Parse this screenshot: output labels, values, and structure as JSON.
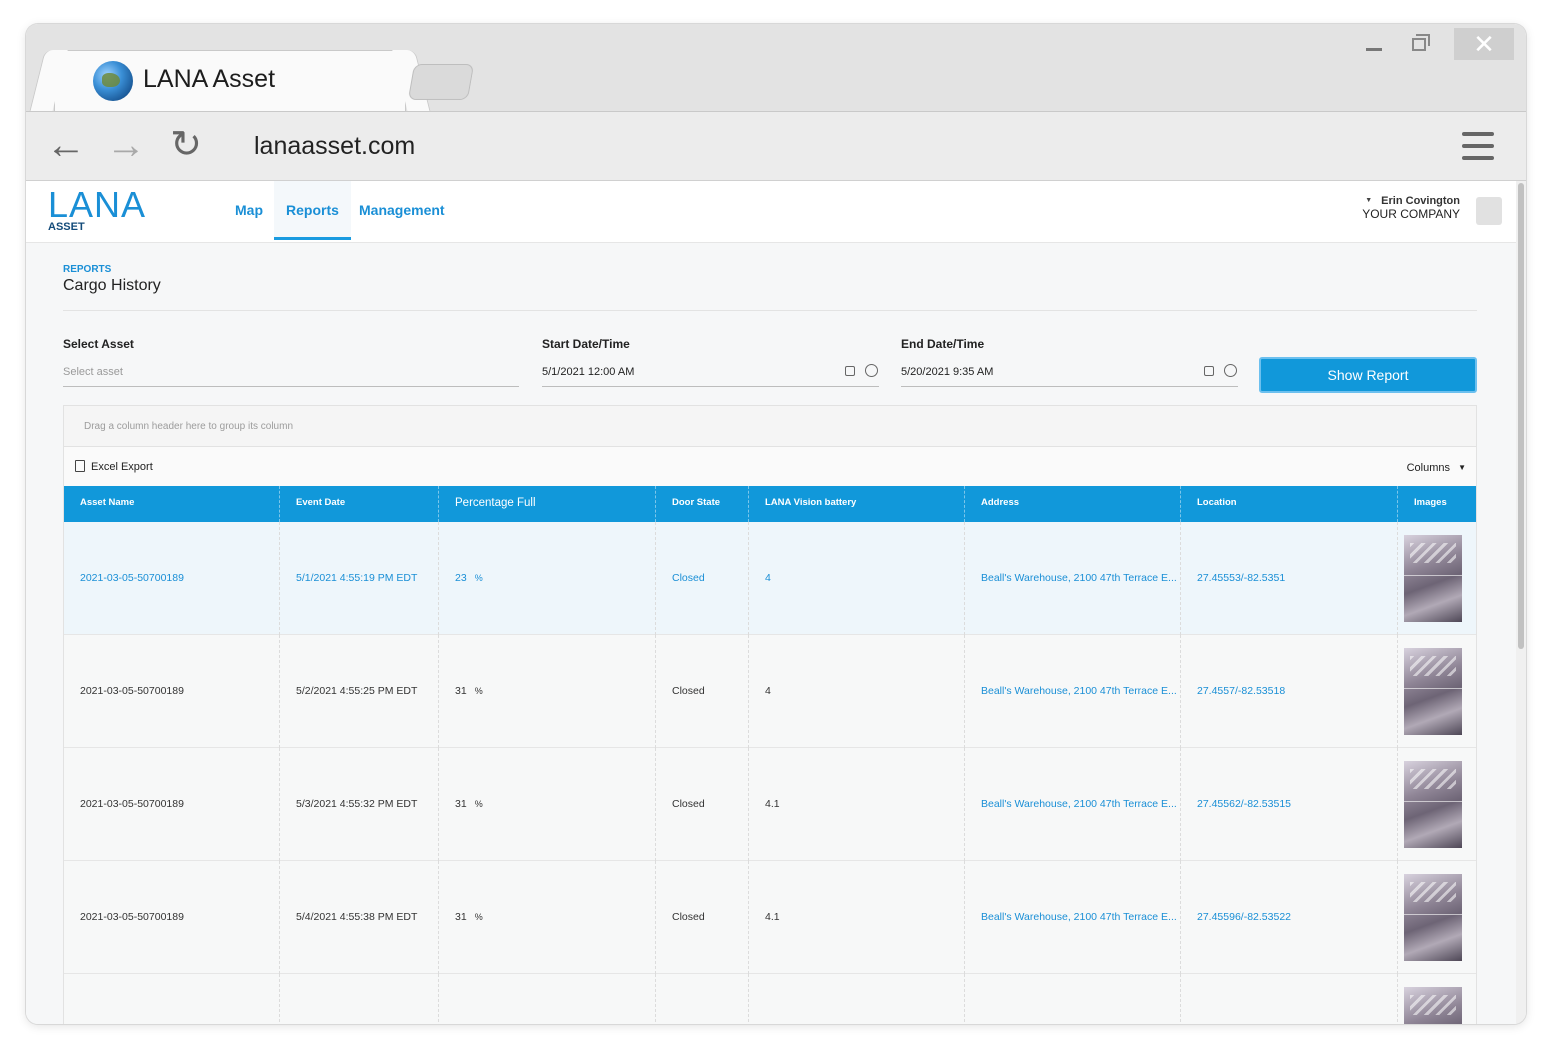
{
  "browser": {
    "tab_title": "LANA Asset",
    "url": "lanaasset.com",
    "close_glyph": "✕"
  },
  "app": {
    "logo_word": "LANA",
    "logo_sub": "ASSET",
    "nav": [
      {
        "label": "Map"
      },
      {
        "label": "Reports",
        "active": true
      },
      {
        "label": "Management"
      }
    ],
    "user": {
      "name": "Erin Covington",
      "company": "YOUR COMPANY"
    }
  },
  "page": {
    "kicker": "REPORTS",
    "title": "Cargo History"
  },
  "filters": {
    "asset_label": "Select Asset",
    "asset_placeholder": "Select asset",
    "start_label": "Start Date/Time",
    "start_value": "5/1/2021 12:00 AM",
    "end_label": "End Date/Time",
    "end_value": "5/20/2021 9:35 AM",
    "show_button": "Show Report"
  },
  "grid": {
    "group_hint": "Drag a column header here to group its column",
    "excel_label": "Excel Export",
    "columns_label": "Columns",
    "headers": [
      "Asset Name",
      "Event Date",
      "Percentage Full",
      "Door State",
      "LANA Vision battery",
      "Address",
      "Location",
      "Images"
    ],
    "rows": [
      {
        "asset": "2021-03-05-50700189",
        "date": "5/1/2021 4:55:19 PM EDT",
        "pct": "23",
        "unit": "%",
        "door": "Closed",
        "battery": "4",
        "address": "Beall's Warehouse, 2100 47th Terrace E...",
        "location": "27.45553/-82.5351"
      },
      {
        "asset": "2021-03-05-50700189",
        "date": "5/2/2021 4:55:25 PM EDT",
        "pct": "31",
        "unit": "%",
        "door": "Closed",
        "battery": "4",
        "address": "Beall's Warehouse, 2100 47th Terrace E...",
        "location": "27.4557/-82.53518"
      },
      {
        "asset": "2021-03-05-50700189",
        "date": "5/3/2021 4:55:32 PM EDT",
        "pct": "31",
        "unit": "%",
        "door": "Closed",
        "battery": "4.1",
        "address": "Beall's Warehouse, 2100 47th Terrace E...",
        "location": "27.45562/-82.53515"
      },
      {
        "asset": "2021-03-05-50700189",
        "date": "5/4/2021 4:55:38 PM EDT",
        "pct": "31",
        "unit": "%",
        "door": "Closed",
        "battery": "4.1",
        "address": "Beall's Warehouse, 2100 47th Terrace E...",
        "location": "27.45596/-82.53522"
      }
    ]
  },
  "colors": {
    "accent": "#1198da",
    "link": "#1a8fd6"
  }
}
